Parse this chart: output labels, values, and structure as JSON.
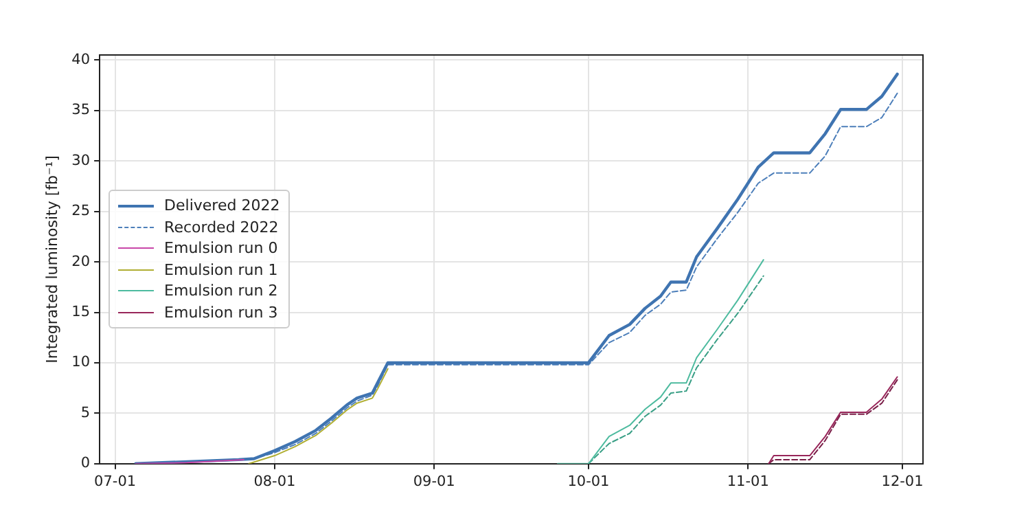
{
  "chart_data": {
    "type": "line",
    "ylabel": "Integrated luminosity [fb⁻¹]",
    "xlim": [
      "2022-06-28",
      "2022-12-05"
    ],
    "ylim": [
      0,
      40.5
    ],
    "xticks": [
      {
        "value": "2022-07-01",
        "label": "07-01"
      },
      {
        "value": "2022-08-01",
        "label": "08-01"
      },
      {
        "value": "2022-09-01",
        "label": "09-01"
      },
      {
        "value": "2022-10-01",
        "label": "10-01"
      },
      {
        "value": "2022-11-01",
        "label": "11-01"
      },
      {
        "value": "2022-12-01",
        "label": "12-01"
      }
    ],
    "yticks": [
      0,
      5,
      10,
      15,
      20,
      25,
      30,
      35,
      40
    ],
    "grid": true,
    "legend": "left",
    "marker": "none",
    "series": [
      {
        "name": "Delivered 2022",
        "color": "#3f74b1",
        "line_style": "solid",
        "x": [
          "2022-07-05",
          "2022-07-25",
          "2022-07-28",
          "2022-08-01",
          "2022-08-05",
          "2022-08-09",
          "2022-08-12",
          "2022-08-15",
          "2022-08-17",
          "2022-08-20",
          "2022-08-21",
          "2022-08-23",
          "2022-10-01",
          "2022-10-05",
          "2022-10-09",
          "2022-10-12",
          "2022-10-15",
          "2022-10-17",
          "2022-10-20",
          "2022-10-22",
          "2022-10-26",
          "2022-10-30",
          "2022-11-03",
          "2022-11-06",
          "2022-11-13",
          "2022-11-16",
          "2022-11-19",
          "2022-11-24",
          "2022-11-27",
          "2022-11-30"
        ],
        "values": [
          0,
          0.4,
          0.5,
          1.3,
          2.2,
          3.3,
          4.5,
          5.8,
          6.5,
          7,
          8,
          10,
          10,
          12.7,
          13.8,
          15.4,
          16.6,
          18,
          18,
          20.5,
          23.3,
          26.2,
          29.4,
          30.8,
          30.8,
          32.7,
          35.1,
          35.1,
          36.4,
          38.6
        ]
      },
      {
        "name": "Recorded 2022",
        "color": "#4d7fba",
        "line_style": "dashed",
        "x": [
          "2022-07-05",
          "2022-07-25",
          "2022-07-28",
          "2022-08-01",
          "2022-08-05",
          "2022-08-09",
          "2022-08-12",
          "2022-08-15",
          "2022-08-17",
          "2022-08-20",
          "2022-08-21",
          "2022-08-23",
          "2022-10-01",
          "2022-10-05",
          "2022-10-09",
          "2022-10-12",
          "2022-10-15",
          "2022-10-17",
          "2022-10-20",
          "2022-10-22",
          "2022-10-26",
          "2022-10-30",
          "2022-11-03",
          "2022-11-06",
          "2022-11-13",
          "2022-11-16",
          "2022-11-19",
          "2022-11-24",
          "2022-11-27",
          "2022-11-30"
        ],
        "values": [
          0,
          0.4,
          0.5,
          1.1,
          1.9,
          3,
          4.2,
          5.5,
          6.2,
          6.8,
          7.7,
          9.8,
          9.8,
          12,
          13,
          14.7,
          15.8,
          17,
          17.2,
          19.5,
          22.3,
          24.9,
          27.8,
          28.8,
          28.8,
          30.5,
          33.4,
          33.4,
          34.3,
          36.7
        ]
      },
      {
        "name": "Emulsion run 0",
        "color": "#c846a8",
        "line_style": "solid",
        "x": [
          "2022-07-05",
          "2022-07-15",
          "2022-07-22",
          "2022-07-26"
        ],
        "values": [
          0,
          0.1,
          0.3,
          0.4
        ]
      },
      {
        "name": "Emulsion run 1",
        "color": "#b0ae32",
        "line_style": "solid",
        "x": [
          "2022-07-27",
          "2022-08-01",
          "2022-08-05",
          "2022-08-09",
          "2022-08-12",
          "2022-08-15",
          "2022-08-17",
          "2022-08-20",
          "2022-08-21",
          "2022-08-23"
        ],
        "values": [
          0,
          0.8,
          1.7,
          2.8,
          4,
          5.3,
          6,
          6.5,
          7.4,
          9.4
        ]
      },
      {
        "name": "Emulsion run 2",
        "color": "#4dbb9f",
        "line_style": "solid",
        "x": [
          "2022-09-25",
          "2022-10-01",
          "2022-10-05",
          "2022-10-09",
          "2022-10-12",
          "2022-10-15",
          "2022-10-17",
          "2022-10-20",
          "2022-10-22",
          "2022-10-26",
          "2022-10-30",
          "2022-11-04"
        ],
        "values": [
          0,
          0,
          2.7,
          3.8,
          5.4,
          6.6,
          8,
          8,
          10.5,
          13.3,
          16.2,
          20.2
        ]
      },
      {
        "color": "#3a9f86",
        "line_style": "dashed",
        "x": [
          "2022-10-01",
          "2022-10-05",
          "2022-10-09",
          "2022-10-12",
          "2022-10-15",
          "2022-10-17",
          "2022-10-20",
          "2022-10-22",
          "2022-10-26",
          "2022-10-30",
          "2022-11-04"
        ],
        "values": [
          0,
          2,
          3,
          4.7,
          5.8,
          7,
          7.2,
          9.5,
          12.3,
          14.9,
          18.6
        ]
      },
      {
        "name": "Emulsion run 3",
        "color": "#98265a",
        "line_style": "solid",
        "x": [
          "2022-11-05",
          "2022-11-06",
          "2022-11-13",
          "2022-11-16",
          "2022-11-19",
          "2022-11-24",
          "2022-11-27",
          "2022-11-30"
        ],
        "values": [
          0,
          0.8,
          0.8,
          2.7,
          5.1,
          5.1,
          6.4,
          8.6
        ]
      },
      {
        "color": "#7a1e48",
        "line_style": "dashed",
        "x": [
          "2022-11-05",
          "2022-11-06",
          "2022-11-13",
          "2022-11-16",
          "2022-11-19",
          "2022-11-24",
          "2022-11-27",
          "2022-11-30"
        ],
        "values": [
          0,
          0.4,
          0.4,
          2.3,
          4.9,
          4.9,
          6,
          8.3
        ]
      }
    ]
  }
}
